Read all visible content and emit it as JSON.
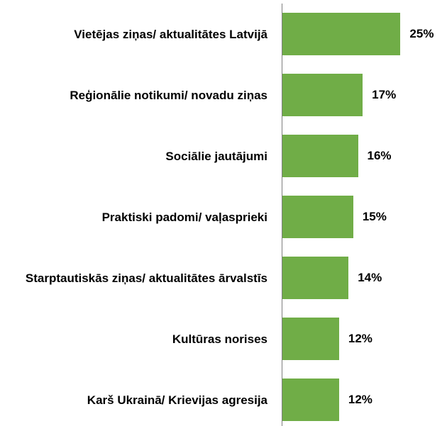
{
  "chart_data": {
    "type": "bar",
    "orientation": "horizontal",
    "categories": [
      "Vietējas ziņas/ aktualitātes Latvijā",
      "Reģionālie notikumi/ novadu ziņas",
      "Sociālie jautājumi",
      "Praktiski padomi/ vaļasprieki",
      "Starptautiskās ziņas/ aktualitātes ārvalstīs",
      "Kultūras norises",
      "Karš Ukrainā/ Krievijas agresija"
    ],
    "values": [
      25,
      17,
      16,
      15,
      14,
      12,
      12
    ],
    "value_labels": [
      "25%",
      "17%",
      "16%",
      "15%",
      "14%",
      "12%",
      "12%"
    ],
    "color": "#70ad47",
    "xlim": [
      0,
      35
    ]
  }
}
